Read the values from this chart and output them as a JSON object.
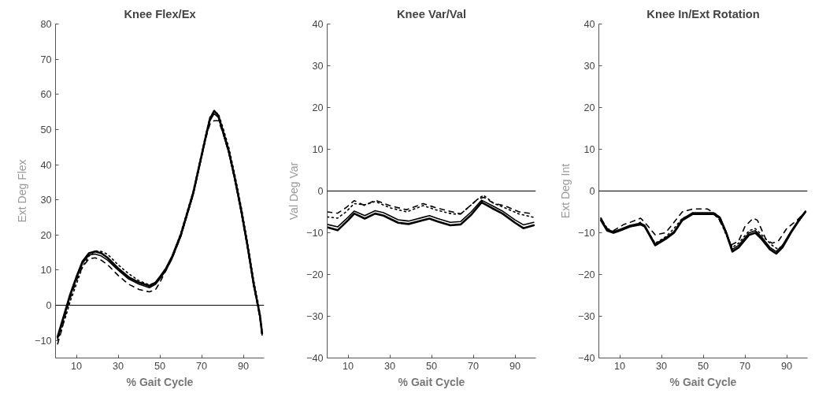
{
  "chart_data": [
    {
      "type": "line",
      "title": "Knee Flex/Ex",
      "xlabel": "% Gait Cycle",
      "ylabel": "Ext Deg Flex",
      "xlim": [
        0,
        100
      ],
      "ylim": [
        -15,
        80
      ],
      "xticks": [
        10,
        30,
        50,
        70,
        90
      ],
      "yticks": [
        -10,
        0,
        10,
        20,
        30,
        40,
        50,
        60,
        70,
        80
      ],
      "grid": false,
      "ref_lines": [
        {
          "axis": "y",
          "value": 0,
          "color": "#000000"
        }
      ],
      "series": [
        {
          "color": "#000000",
          "line_style": "solid",
          "x": [
            1,
            3,
            5,
            7,
            10,
            13,
            16,
            19,
            22,
            25,
            30,
            35,
            40,
            45,
            48,
            50,
            53,
            56,
            60,
            63,
            66,
            69,
            72,
            74,
            76,
            78,
            80,
            83,
            86,
            89,
            92,
            95,
            97,
            98,
            99
          ],
          "values": [
            -9,
            -5,
            -1,
            3,
            8,
            12.5,
            14.8,
            15.3,
            14.8,
            13.5,
            10.5,
            8,
            6.5,
            5.5,
            6.5,
            8,
            10.5,
            14,
            20,
            26,
            32,
            40,
            48,
            53,
            55.3,
            54,
            50,
            44,
            36,
            27,
            17,
            6,
            0,
            -3,
            -8
          ]
        },
        {
          "color": "#000000",
          "line_style": "solid",
          "x": [
            1,
            3,
            5,
            7,
            10,
            13,
            16,
            19,
            22,
            25,
            30,
            35,
            40,
            45,
            48,
            50,
            53,
            56,
            60,
            63,
            66,
            69,
            72,
            74,
            76,
            78,
            80,
            83,
            86,
            89,
            92,
            95,
            97,
            98,
            99
          ],
          "values": [
            -9.5,
            -5.5,
            -1.5,
            2.5,
            7.5,
            12,
            14.3,
            14.6,
            14,
            12.8,
            10,
            7.5,
            6,
            5,
            6,
            7.5,
            10,
            13.5,
            19.5,
            25.5,
            31.5,
            39.5,
            47.5,
            52.5,
            54.5,
            53.5,
            49.5,
            43.5,
            35.5,
            26.5,
            16.5,
            5.5,
            0,
            -3.5,
            -8.5
          ]
        },
        {
          "color": "#000000",
          "line_style": "dashed",
          "x": [
            1,
            3,
            5,
            7,
            10,
            13,
            16,
            19,
            22,
            25,
            30,
            35,
            40,
            45,
            48,
            50,
            53,
            56,
            60,
            63,
            66,
            69,
            72,
            74,
            76,
            78,
            80,
            83,
            86,
            89,
            92,
            95,
            97,
            98,
            99
          ],
          "values": [
            -11,
            -7,
            -2,
            2,
            7,
            11,
            13.2,
            13.5,
            12.8,
            11.5,
            8.5,
            6,
            4.5,
            3.8,
            4.5,
            6.5,
            10,
            13.5,
            19.5,
            25.5,
            31.5,
            39.5,
            47.5,
            51.5,
            52.5,
            52.5,
            49.5,
            43.5,
            35.5,
            26.5,
            16.5,
            5.5,
            -0.5,
            -4,
            -8.5
          ]
        },
        {
          "color": "#000000",
          "line_style": "dotted",
          "x": [
            1,
            3,
            5,
            7,
            10,
            13,
            16,
            19,
            22,
            25,
            30,
            35,
            40,
            45,
            48,
            50,
            53,
            56,
            60,
            63,
            66,
            69,
            72,
            74,
            76,
            78,
            80,
            83,
            86,
            89,
            92,
            95,
            97,
            98,
            99
          ],
          "values": [
            -10,
            -6.5,
            -3,
            1,
            6,
            11,
            14,
            15.5,
            15.3,
            14.5,
            11.5,
            9,
            7,
            5.8,
            6.5,
            8,
            10.5,
            14,
            20.5,
            26.5,
            32.5,
            40.5,
            48.5,
            53.5,
            55,
            54.5,
            51,
            45,
            37,
            28,
            18,
            7,
            1,
            -2.5,
            -7.5
          ]
        }
      ]
    },
    {
      "type": "line",
      "title": "Knee Var/Val",
      "xlabel": "% Gait Cycle",
      "ylabel": "Val Deg Var",
      "xlim": [
        0,
        100
      ],
      "ylim": [
        -40,
        40
      ],
      "xticks": [
        10,
        30,
        50,
        70,
        90
      ],
      "yticks": [
        -40,
        -30,
        -20,
        -10,
        0,
        10,
        20,
        30,
        40
      ],
      "grid": false,
      "ref_lines": [
        {
          "axis": "y",
          "value": 0,
          "color": "#000000"
        }
      ],
      "series": [
        {
          "color": "#000000",
          "line_style": "solid",
          "x": [
            0,
            5,
            10,
            13,
            18,
            23,
            27,
            34,
            39,
            46,
            49,
            53,
            59,
            64,
            69,
            74,
            79,
            84,
            90,
            94,
            99
          ],
          "values": [
            -8.7,
            -9.4,
            -7,
            -5.4,
            -6.6,
            -5.4,
            -5.9,
            -7.6,
            -7.9,
            -7,
            -6.6,
            -7.3,
            -8.2,
            -8,
            -5.7,
            -2.7,
            -4.1,
            -5.4,
            -7.6,
            -8.9,
            -8.2
          ]
        },
        {
          "color": "#000000",
          "line_style": "solid",
          "x": [
            0,
            5,
            10,
            13,
            18,
            23,
            27,
            34,
            39,
            46,
            49,
            53,
            59,
            64,
            69,
            74,
            79,
            84,
            90,
            94,
            99
          ],
          "values": [
            -8,
            -8.6,
            -6.3,
            -4.8,
            -5.9,
            -4.7,
            -5.2,
            -6.9,
            -7.2,
            -6.3,
            -5.9,
            -6.6,
            -7.5,
            -7.3,
            -5,
            -2.2,
            -3.5,
            -4.8,
            -6.9,
            -8.1,
            -7.5
          ]
        },
        {
          "color": "#000000",
          "line_style": "dashed",
          "x": [
            0,
            5,
            9,
            13,
            18,
            23,
            30,
            38,
            46,
            52,
            60,
            64,
            72,
            75,
            80,
            85,
            92,
            99
          ],
          "values": [
            -5,
            -5.3,
            -4,
            -2.3,
            -3.5,
            -2.2,
            -3.5,
            -4.5,
            -3,
            -4,
            -5,
            -5.5,
            -2,
            -1.5,
            -3,
            -3.5,
            -5,
            -5.5
          ]
        },
        {
          "color": "#000000",
          "line_style": "dotted",
          "x": [
            0,
            5,
            9,
            13,
            18,
            23,
            30,
            38,
            46,
            52,
            60,
            64,
            72,
            75,
            80,
            85,
            92,
            99
          ],
          "values": [
            -6.2,
            -6.5,
            -5,
            -3,
            -3.3,
            -2.5,
            -4,
            -5,
            -3.5,
            -4.5,
            -5.5,
            -5.5,
            -2,
            -1,
            -3,
            -4,
            -5.5,
            -6.3
          ]
        }
      ]
    },
    {
      "type": "line",
      "title": "Knee In/Ext Rotation",
      "xlabel": "% Gait Cycle",
      "ylabel": "Ext Deg Int",
      "xlim": [
        0,
        100
      ],
      "ylim": [
        -40,
        40
      ],
      "xticks": [
        10,
        30,
        50,
        70,
        90
      ],
      "yticks": [
        -40,
        -30,
        -20,
        -10,
        0,
        10,
        20,
        30,
        40
      ],
      "grid": false,
      "ref_lines": [
        {
          "axis": "y",
          "value": 0,
          "color": "#000000"
        }
      ],
      "series": [
        {
          "color": "#000000",
          "line_style": "solid",
          "x": [
            1,
            4,
            7,
            10,
            15,
            20,
            22,
            27,
            32,
            36,
            40,
            45,
            55,
            58,
            61,
            64,
            67,
            72,
            75,
            78,
            82,
            85,
            88,
            92,
            96,
            99
          ],
          "values": [
            -7,
            -9.5,
            -10,
            -9.5,
            -8.5,
            -8,
            -8.5,
            -13,
            -11.5,
            -10,
            -7,
            -5.5,
            -5.5,
            -6.5,
            -10,
            -14.5,
            -13.5,
            -10.5,
            -10,
            -11.5,
            -14,
            -15,
            -13.5,
            -10,
            -7,
            -5
          ]
        },
        {
          "color": "#000000",
          "line_style": "solid",
          "x": [
            1,
            4,
            7,
            10,
            15,
            20,
            22,
            27,
            32,
            36,
            40,
            45,
            55,
            58,
            61,
            64,
            67,
            72,
            75,
            78,
            82,
            85,
            88,
            92,
            96,
            99
          ],
          "values": [
            -6.7,
            -9.2,
            -9.7,
            -9.2,
            -8.2,
            -7.7,
            -8.2,
            -12.7,
            -11.2,
            -9.7,
            -6.7,
            -5.2,
            -5.2,
            -6.2,
            -9.7,
            -14,
            -13,
            -10,
            -9.5,
            -11,
            -13.5,
            -14.5,
            -13,
            -9.7,
            -6.7,
            -4.8
          ]
        },
        {
          "color": "#000000",
          "line_style": "dashed",
          "x": [
            1,
            4,
            7,
            12,
            15,
            20,
            22,
            27,
            32,
            36,
            40,
            45,
            52,
            56,
            60,
            63,
            67,
            70,
            74,
            76,
            80,
            83,
            86,
            90,
            95,
            99
          ],
          "values": [
            -6.5,
            -9,
            -9.5,
            -8,
            -7.5,
            -6.5,
            -7.5,
            -10.5,
            -10,
            -7.5,
            -5,
            -4.3,
            -4.3,
            -5.5,
            -9,
            -13,
            -12,
            -8.5,
            -6.5,
            -7,
            -11.5,
            -12.5,
            -12,
            -9,
            -7,
            -5
          ]
        },
        {
          "color": "#000000",
          "line_style": "dotted",
          "x": [
            1,
            4,
            7,
            10,
            15,
            20,
            22,
            27,
            32,
            36,
            40,
            45,
            55,
            58,
            61,
            64,
            67,
            72,
            75,
            78,
            83,
            86,
            89,
            92,
            96,
            99
          ],
          "values": [
            -6.5,
            -9,
            -10,
            -9.5,
            -8.5,
            -7.5,
            -8.5,
            -12.5,
            -11,
            -9,
            -6.5,
            -5.5,
            -5.5,
            -7,
            -10.5,
            -13.5,
            -12.5,
            -9.5,
            -9,
            -10.5,
            -13,
            -14,
            -12.5,
            -10,
            -7,
            -5
          ]
        }
      ]
    }
  ]
}
